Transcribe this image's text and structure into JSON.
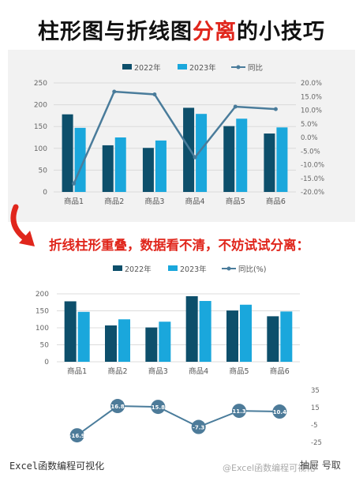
{
  "title": {
    "part1": "柱形图与折线图",
    "highlight": "分离",
    "part2": "的小技巧"
  },
  "subtitle": "折线柱形重叠，数据看不清，不妨试试分离：",
  "footer": {
    "left": "Excel函数编程可视化",
    "watermark": "@Excel函数编程可视化",
    "right": "抽屉  号取"
  },
  "colors": {
    "series_2022": "#0d4f6b",
    "series_2023": "#1aa7dc",
    "line": "#4a7c9b",
    "marker_fill": "#4d7b99",
    "title_red": "#e0261c",
    "arrow_red": "#e0261c"
  },
  "chart_data": [
    {
      "type": "bar",
      "categories": [
        "商品1",
        "商品2",
        "商品3",
        "商品4",
        "商品5",
        "商品6"
      ],
      "series": [
        {
          "name": "2022年",
          "values": [
            178,
            107,
            101,
            193,
            151,
            134
          ]
        },
        {
          "name": "2023年",
          "values": [
            147,
            125,
            118,
            179,
            168,
            148
          ]
        }
      ],
      "line_series": {
        "name": "同比",
        "axis": "secondary",
        "values": [
          -16.9,
          16.8,
          15.8,
          -7.3,
          11.3,
          10.4
        ]
      },
      "ylim": [
        0,
        250
      ],
      "yticks": [
        "0",
        "50",
        "100",
        "150",
        "200",
        "250"
      ],
      "y2lim": [
        -20,
        20
      ],
      "y2ticks": [
        "-20.0%",
        "-15.0%",
        "-10.0%",
        "-5.0%",
        "0.0%",
        "5.0%",
        "10.0%",
        "15.0%",
        "20.0%"
      ],
      "legend": "top",
      "grid": true
    },
    {
      "type": "bar",
      "categories": [
        "商品1",
        "商品2",
        "商品3",
        "商品4",
        "商品5",
        "商品6"
      ],
      "series": [
        {
          "name": "2022年",
          "values": [
            178,
            107,
            101,
            193,
            151,
            134
          ]
        },
        {
          "name": "2023年",
          "values": [
            147,
            125,
            118,
            179,
            168,
            148
          ]
        }
      ],
      "line_series": {
        "name": "同比(%)",
        "axis": "secondary-separated",
        "values": [
          -16.9,
          16.8,
          15.8,
          -7.3,
          11.3,
          10.4
        ],
        "data_labels": [
          "-16.9",
          "16.8",
          "15.8",
          "-7.3",
          "11.3",
          "10.4"
        ]
      },
      "ylim": [
        0,
        200
      ],
      "yticks": [
        "0",
        "50",
        "100",
        "150",
        "200"
      ],
      "y2lim": [
        -25,
        35
      ],
      "y2ticks": [
        "-25",
        "-5",
        "15",
        "35"
      ],
      "legend": "top",
      "grid": true
    }
  ]
}
